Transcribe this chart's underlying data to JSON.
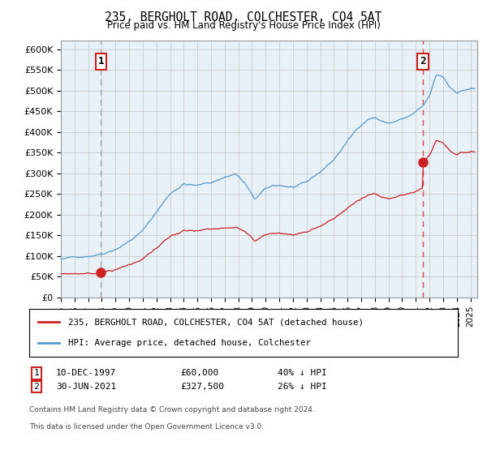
{
  "title": "235, BERGHOLT ROAD, COLCHESTER, CO4 5AT",
  "subtitle": "Price paid vs. HM Land Registry's House Price Index (HPI)",
  "ylabel_ticks": [
    "£0",
    "£50K",
    "£100K",
    "£150K",
    "£200K",
    "£250K",
    "£300K",
    "£350K",
    "£400K",
    "£450K",
    "£500K",
    "£550K",
    "£600K"
  ],
  "ytick_values": [
    0,
    50000,
    100000,
    150000,
    200000,
    250000,
    300000,
    350000,
    400000,
    450000,
    500000,
    550000,
    600000
  ],
  "xmin": 1995.0,
  "xmax": 2025.5,
  "ymin": 0,
  "ymax": 620000,
  "purchase1_date": 1997.94,
  "purchase1_price": 60000,
  "purchase2_date": 2021.5,
  "purchase2_price": 327500,
  "hpi_color": "#5599cc",
  "price_color": "#cc2222",
  "dash1_color": "#aaaaaa",
  "dash2_color": "#dd4444",
  "chart_bg": "#e8f0f8",
  "legend_label_price": "235, BERGHOLT ROAD, COLCHESTER, CO4 5AT (detached house)",
  "legend_label_hpi": "HPI: Average price, detached house, Colchester",
  "footnote1": "Contains HM Land Registry data © Crown copyright and database right 2024.",
  "footnote2": "This data is licensed under the Open Government Licence v3.0.",
  "background_color": "#ffffff"
}
